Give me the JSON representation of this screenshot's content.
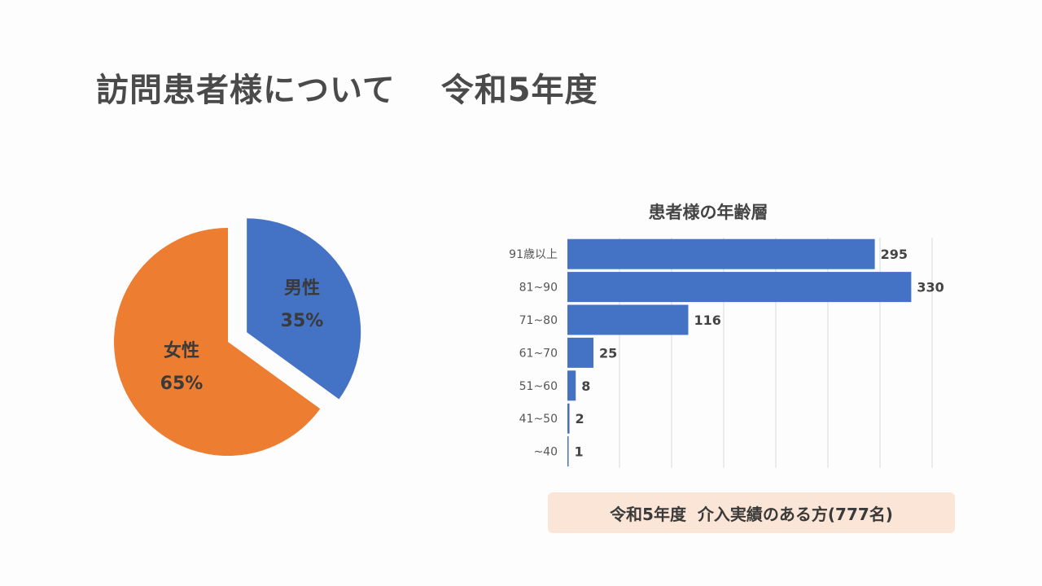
{
  "page": {
    "title": "訪問患者様について　 令和5年度"
  },
  "pie": {
    "slices": [
      {
        "label": "男性",
        "percent_label": "35%",
        "value": 35,
        "color": "#4472c4",
        "exploded": true
      },
      {
        "label": "女性",
        "percent_label": "65%",
        "value": 65,
        "color": "#ed7d31",
        "exploded": false
      }
    ]
  },
  "chart_data": {
    "type": "bar",
    "orientation": "horizontal",
    "title": "患者様の年齢層",
    "categories": [
      "91歳以上",
      "81~90",
      "71~80",
      "61~70",
      "51~60",
      "41~50",
      "~40"
    ],
    "values": [
      295,
      330,
      116,
      25,
      8,
      2,
      1
    ],
    "xlim": [
      0,
      350
    ],
    "grid": true,
    "color": "#4472c4"
  },
  "caption": {
    "text": "令和5年度  介入実績のある方(777名)"
  }
}
